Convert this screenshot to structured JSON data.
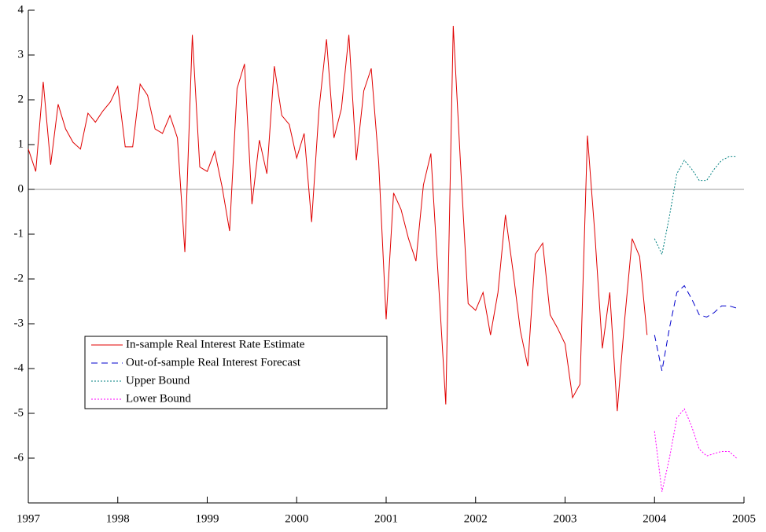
{
  "chart_data": {
    "type": "line",
    "xlim": [
      1997,
      2005
    ],
    "xticks": [
      1997,
      1998,
      1999,
      2000,
      2001,
      2002,
      2003,
      2004,
      2005
    ],
    "ylim": [
      -7,
      4
    ],
    "yticks": [
      -6,
      -5,
      -4,
      -3,
      -2,
      -1,
      0,
      1,
      2,
      3,
      4
    ],
    "zero_line": true,
    "legend": "lower-left",
    "series": [
      {
        "name": "In-sample Real Interest Rate Estimate",
        "color": "#e00000",
        "dash": "solid",
        "x": [
          1997,
          1997.0833,
          1997.1667,
          1997.25,
          1997.3333,
          1997.4167,
          1997.5,
          1997.5833,
          1997.6667,
          1997.75,
          1997.8333,
          1997.9167,
          1998,
          1998.0833,
          1998.1667,
          1998.25,
          1998.3333,
          1998.4167,
          1998.5,
          1998.5833,
          1998.6667,
          1998.75,
          1998.8333,
          1998.9167,
          1999,
          1999.0833,
          1999.1667,
          1999.25,
          1999.3333,
          1999.4167,
          1999.5,
          1999.5833,
          1999.6667,
          1999.75,
          1999.8333,
          1999.9167,
          2000,
          2000.0833,
          2000.1667,
          2000.25,
          2000.3333,
          2000.4167,
          2000.5,
          2000.5833,
          2000.6667,
          2000.75,
          2000.8333,
          2000.9167,
          2001,
          2001.0833,
          2001.1667,
          2001.25,
          2001.3333,
          2001.4167,
          2001.5,
          2001.5833,
          2001.6667,
          2001.75,
          2001.8333,
          2001.9167,
          2002,
          2002.0833,
          2002.1667,
          2002.25,
          2002.3333,
          2002.4167,
          2002.5,
          2002.5833,
          2002.6667,
          2002.75,
          2002.8333,
          2002.9167,
          2003,
          2003.0833,
          2003.1667,
          2003.25,
          2003.3333,
          2003.4167,
          2003.5,
          2003.5833,
          2003.6667,
          2003.75,
          2003.8333,
          2003.9167
        ],
        "values": [
          0.9,
          0.4,
          2.4,
          0.55,
          1.9,
          1.35,
          1.05,
          0.9,
          1.7,
          1.5,
          1.75,
          1.95,
          2.3,
          0.95,
          0.95,
          2.35,
          2.1,
          1.35,
          1.25,
          1.65,
          1.15,
          -1.4,
          3.45,
          0.5,
          0.4,
          0.85,
          0.05,
          -0.93,
          2.25,
          2.8,
          -0.33,
          1.1,
          0.35,
          2.75,
          1.65,
          1.45,
          0.7,
          1.25,
          -0.73,
          1.8,
          3.35,
          1.15,
          1.8,
          3.45,
          0.65,
          2.2,
          2.7,
          0.6,
          -2.9,
          -0.08,
          -0.45,
          -1.1,
          -1.6,
          0.1,
          0.8,
          -2.0,
          -4.8,
          3.65,
          0.5,
          -2.55,
          -2.7,
          -2.3,
          -3.25,
          -2.3,
          -0.57,
          -1.8,
          -3.15,
          -3.95,
          -1.45,
          -1.2,
          -2.8,
          -3.1,
          -3.45,
          -4.65,
          -4.35,
          1.2,
          -1.0,
          -3.55,
          -2.3,
          -4.95,
          -2.9,
          -1.1,
          -1.5,
          -3.25
        ]
      },
      {
        "name": "Out-of-sample Real Interest Forecast",
        "color": "#0000cc",
        "dash": "dashed",
        "x": [
          2004,
          2004.0833,
          2004.1667,
          2004.25,
          2004.3333,
          2004.4167,
          2004.5,
          2004.5833,
          2004.6667,
          2004.75,
          2004.8333,
          2004.9167
        ],
        "values": [
          -3.25,
          -4.05,
          -3.1,
          -2.3,
          -2.15,
          -2.45,
          -2.8,
          -2.85,
          -2.75,
          -2.6,
          -2.6,
          -2.65
        ]
      },
      {
        "name": "Upper Bound",
        "color": "#008080",
        "dash": "dotted",
        "x": [
          2004,
          2004.0833,
          2004.1667,
          2004.25,
          2004.3333,
          2004.4167,
          2004.5,
          2004.5833,
          2004.6667,
          2004.75,
          2004.8333,
          2004.9167
        ],
        "values": [
          -1.1,
          -1.45,
          -0.6,
          0.35,
          0.65,
          0.45,
          0.2,
          0.2,
          0.45,
          0.65,
          0.73,
          0.73
        ]
      },
      {
        "name": "Lower Bound",
        "color": "#ff00ff",
        "dash": "dotted",
        "x": [
          2004,
          2004.0833,
          2004.1667,
          2004.25,
          2004.3333,
          2004.4167,
          2004.5,
          2004.5833,
          2004.6667,
          2004.75,
          2004.8333,
          2004.9167
        ],
        "values": [
          -5.4,
          -6.75,
          -6.0,
          -5.1,
          -4.9,
          -5.3,
          -5.8,
          -5.95,
          -5.9,
          -5.85,
          -5.85,
          -6.0
        ]
      }
    ]
  }
}
